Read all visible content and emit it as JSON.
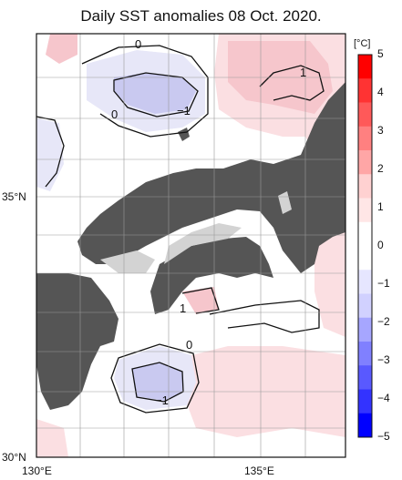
{
  "title": "Daily SST anomalies 08 Oct. 2020.",
  "axes": {
    "x_ticks": [
      "130°E",
      "135°E"
    ],
    "y_ticks": [
      "35°N",
      "30°N"
    ]
  },
  "colorbar": {
    "unit": "[°C]",
    "ticks": [
      "5",
      "4",
      "3",
      "2",
      "1",
      "0",
      "−1",
      "−2",
      "−3",
      "−4",
      "−5"
    ],
    "colors": [
      "#ff0000",
      "#ff3333",
      "#ff5959",
      "#ff8080",
      "#ffa6a6",
      "#ffd1d1",
      "#ffe6e6",
      "#ffffff",
      "#ffffff",
      "#e6e6ff",
      "#d1d1ff",
      "#a6a6ff",
      "#8080ff",
      "#5959ff",
      "#3333ff",
      "#0000ff"
    ]
  },
  "contour_labels": [
    "0",
    "0",
    "1",
    "−1",
    "1",
    "0",
    "−1"
  ],
  "colors": {
    "land": "#555555",
    "warm": "#f9d9dc",
    "warm_strong": "#f5c2c8",
    "cool": "#e6e6f8",
    "cool_strong": "#c9c9f2"
  }
}
